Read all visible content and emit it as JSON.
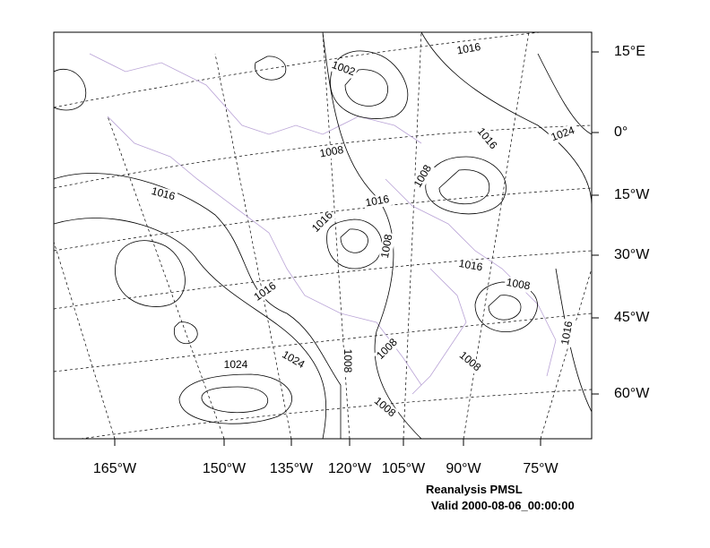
{
  "map": {
    "right_labels": [
      "15°E",
      "0°",
      "15°W",
      "30°W",
      "45°W",
      "60°W"
    ],
    "bottom_labels": [
      "165°W",
      "150°W",
      "135°W",
      "120°W",
      "105°W",
      "90°W",
      "75°W"
    ],
    "contour_labels": [
      "1016",
      "1002",
      "1016",
      "1024",
      "1008",
      "1008",
      "1016",
      "1016",
      "1016",
      "1008",
      "1016",
      "1008",
      "1016",
      "1016",
      "1024",
      "1024",
      "1008",
      "1008",
      "1008",
      "1008"
    ],
    "caption": {
      "title": "Reanalysis PMSL",
      "valid": "Valid 2000-08-06_00:00:00"
    }
  }
}
